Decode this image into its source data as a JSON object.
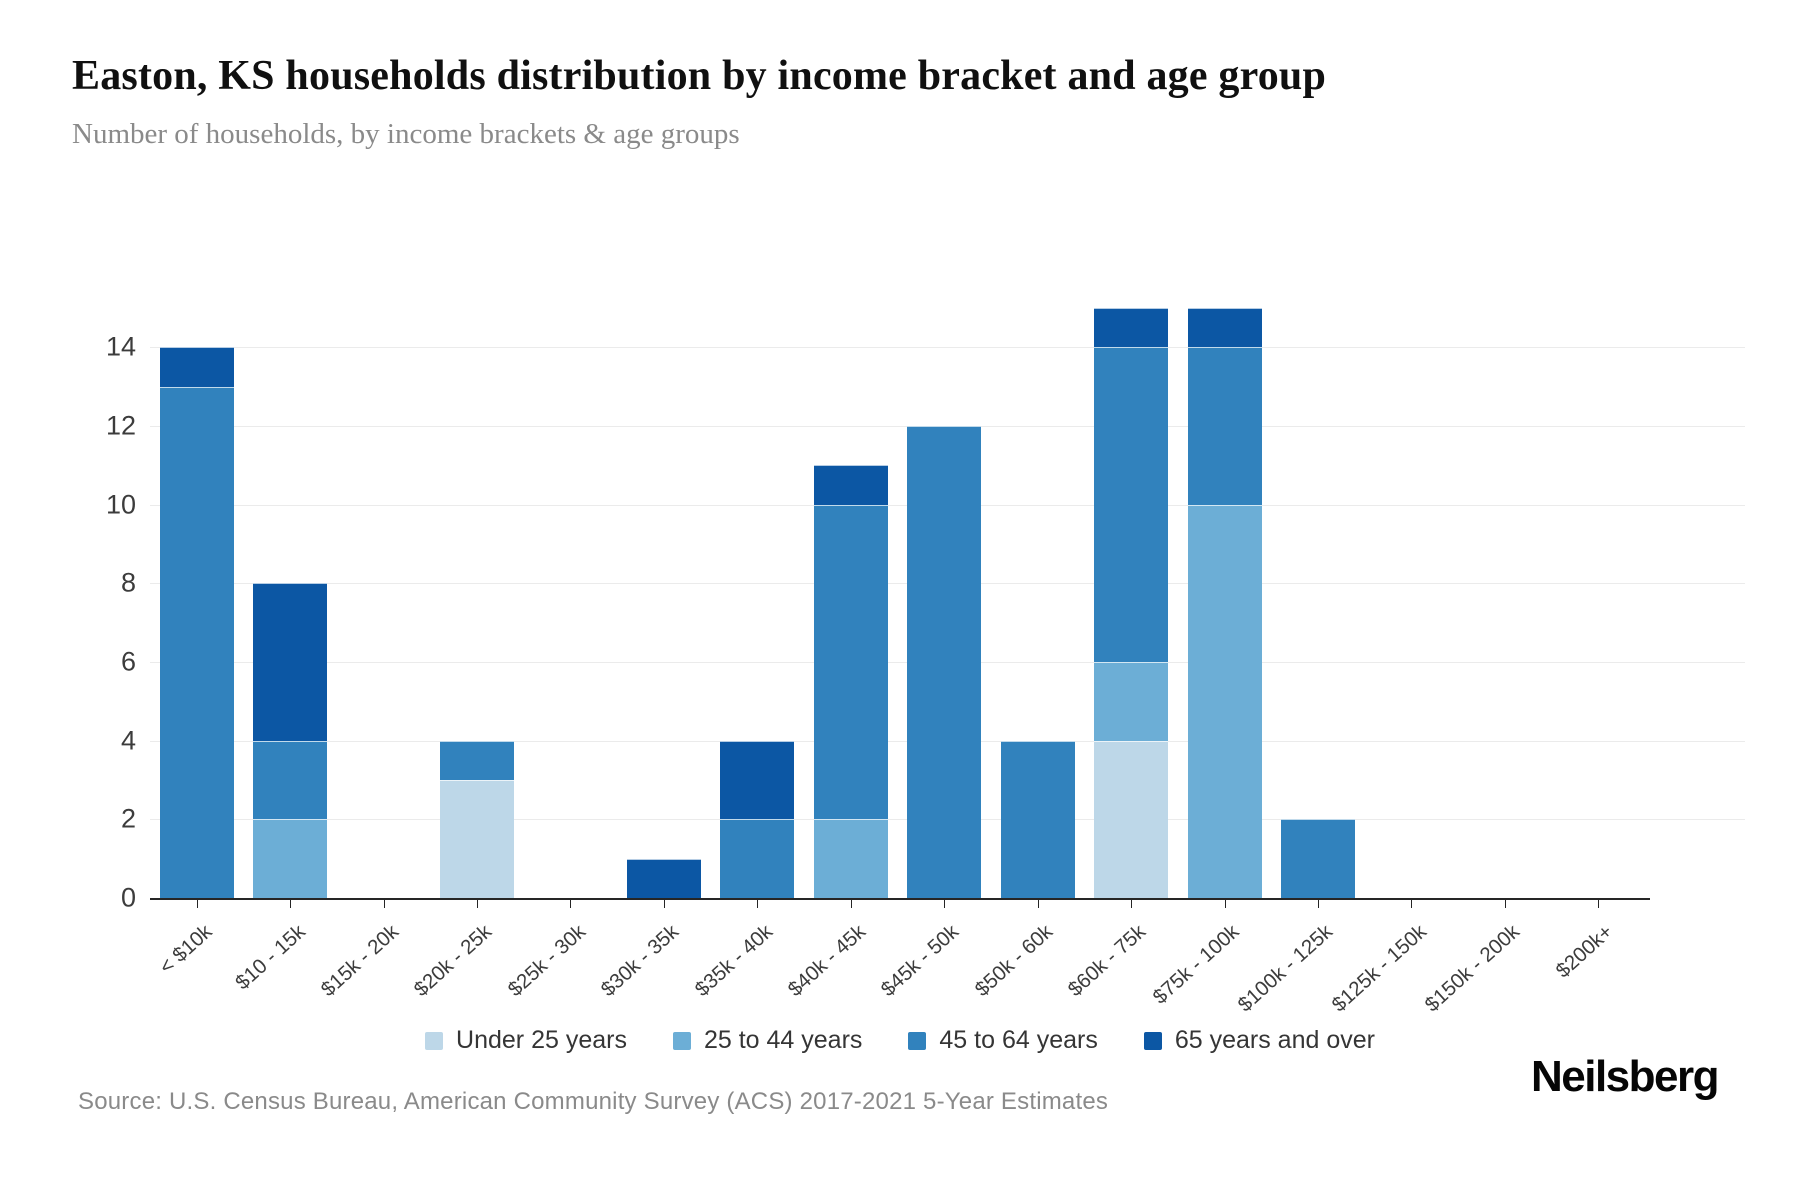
{
  "header": {
    "title": "Easton, KS households distribution by income bracket and age group",
    "subtitle": "Number of households, by income brackets & age groups"
  },
  "footer": {
    "source": "Source: U.S. Census Bureau, American Community Survey (ACS) 2017-2021 5-Year Estimates",
    "brand": "Neilsberg"
  },
  "chart_data": {
    "type": "bar",
    "stacked": true,
    "title": "Easton, KS households distribution by income bracket and age group",
    "xlabel": "",
    "ylabel": "Number of households",
    "categories": [
      "< $10k",
      "$10 - 15k",
      "$15k - 20k",
      "$20k - 25k",
      "$25k - 30k",
      "$30k - 35k",
      "$35k - 40k",
      "$40k - 45k",
      "$45k - 50k",
      "$50k - 60k",
      "$60k - 75k",
      "$75k - 100k",
      "$100k - 125k",
      "$125k - 150k",
      "$150k - 200k",
      "$200k+"
    ],
    "series": [
      {
        "name": "Under 25 years",
        "color": "#bdd7e8",
        "values": [
          0,
          0,
          0,
          3,
          0,
          0,
          0,
          0,
          0,
          0,
          4,
          0,
          0,
          0,
          0,
          0
        ]
      },
      {
        "name": "25 to 44 years",
        "color": "#6caed6",
        "values": [
          0,
          2,
          0,
          0,
          0,
          0,
          0,
          2,
          0,
          0,
          2,
          10,
          0,
          0,
          0,
          0
        ]
      },
      {
        "name": "45 to 64 years",
        "color": "#3182bd",
        "values": [
          13,
          2,
          0,
          1,
          0,
          0,
          2,
          8,
          12,
          4,
          8,
          4,
          2,
          0,
          0,
          0
        ]
      },
      {
        "name": "65 years and over",
        "color": "#0c57a4",
        "values": [
          1,
          4,
          0,
          0,
          0,
          1,
          2,
          1,
          0,
          0,
          1,
          1,
          0,
          0,
          0,
          0
        ]
      }
    ],
    "totals": [
      14,
      8,
      0,
      4,
      0,
      1,
      4,
      11,
      12,
      4,
      15,
      15,
      2,
      0,
      0,
      0
    ],
    "ylim": [
      0,
      15
    ],
    "yticks": [
      0,
      2,
      4,
      6,
      8,
      10,
      12,
      14
    ],
    "grid": "horizontal",
    "legend_position": "bottom",
    "axis_color": "#262626",
    "gridline_color": "#ebebeb"
  }
}
